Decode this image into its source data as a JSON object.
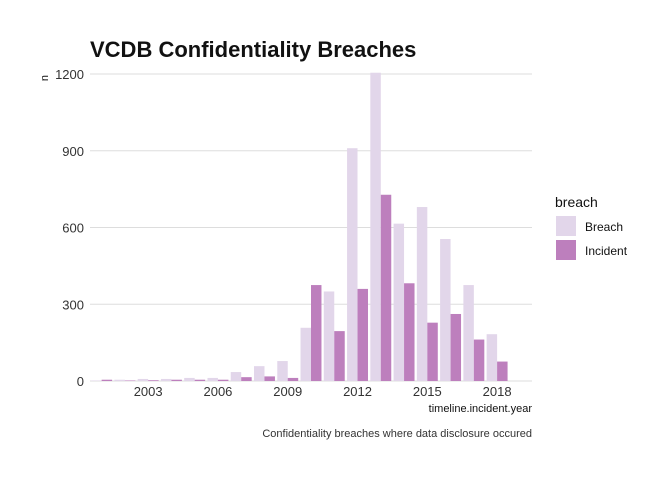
{
  "chart_data": {
    "type": "bar",
    "title": "VCDB Confidentiality Breaches",
    "caption": "Confidentiality breaches where data disclosure occured",
    "xlabel": "timeline.incident.year",
    "ylabel": "n",
    "ylim": [
      0,
      1200
    ],
    "yticks": [
      0,
      300,
      600,
      900,
      1200
    ],
    "xticks": [
      2003,
      2006,
      2009,
      2012,
      2015,
      2018
    ],
    "xlim": [
      2000.5,
      2019.5
    ],
    "grid": "horizontal",
    "legend": {
      "title": "breach",
      "placement": "right"
    },
    "x": [
      2001,
      2002,
      2003,
      2004,
      2005,
      2006,
      2007,
      2008,
      2009,
      2010,
      2011,
      2012,
      2013,
      2014,
      2015,
      2016,
      2017,
      2018
    ],
    "series": [
      {
        "name": "Breach",
        "color": "#e2d6ea",
        "values": [
          2,
          5,
          8,
          8,
          12,
          12,
          35,
          58,
          78,
          208,
          350,
          910,
          1205,
          615,
          680,
          555,
          375,
          183
        ]
      },
      {
        "name": "Incident",
        "color": "#bd7fbd",
        "values": [
          5,
          2,
          3,
          5,
          5,
          5,
          15,
          18,
          12,
          375,
          195,
          360,
          728,
          382,
          228,
          262,
          162,
          76
        ]
      }
    ]
  }
}
